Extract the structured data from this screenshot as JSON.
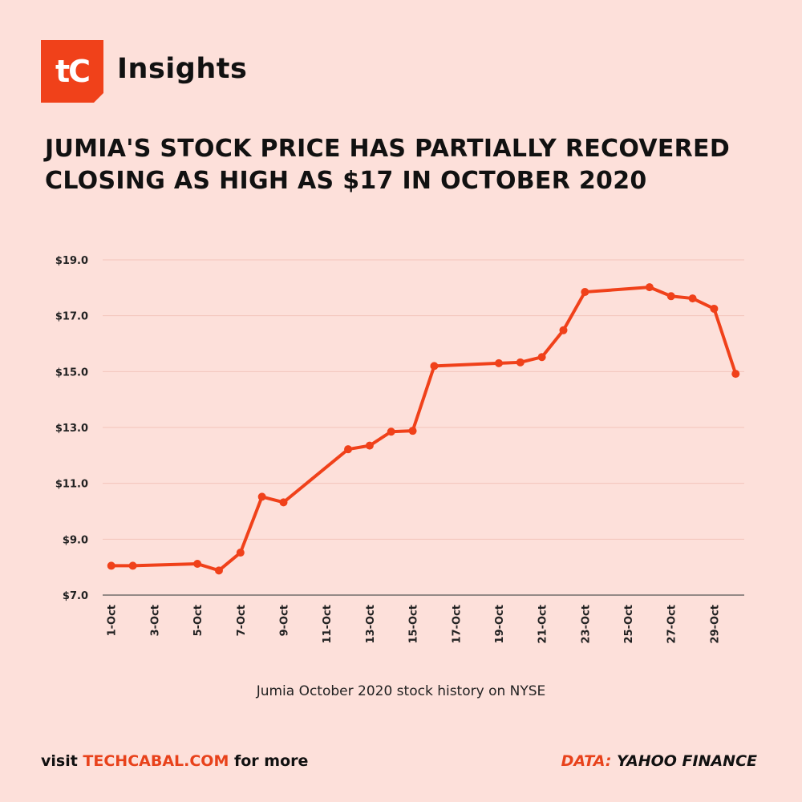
{
  "brand": {
    "logo_text": "tC",
    "name": "Insights",
    "accent_color": "#e8421b"
  },
  "title_lines": [
    "JUMIA'S STOCK PRICE HAS PARTIALLY RECOVERED",
    "CLOSING AS HIGH AS $17 IN OCTOBER 2020"
  ],
  "chart_data": {
    "type": "line",
    "title": "",
    "xlabel": "",
    "ylabel": "",
    "xlim": [
      1,
      30
    ],
    "ylim": [
      7.0,
      19.0
    ],
    "y_ticks": [
      7.0,
      9.0,
      11.0,
      13.0,
      15.0,
      17.0,
      19.0
    ],
    "y_tick_labels": [
      "$7.0",
      "$9.0",
      "$11.0",
      "$13.0",
      "$15.0",
      "$17.0",
      "$19.0"
    ],
    "x_ticks": [
      1,
      3,
      5,
      7,
      9,
      11,
      13,
      15,
      17,
      19,
      21,
      23,
      25,
      27,
      29
    ],
    "x_tick_labels": [
      "1-Oct",
      "3-Oct",
      "5-Oct",
      "7-Oct",
      "9-Oct",
      "11-Oct",
      "13-Oct",
      "15-Oct",
      "17-Oct",
      "19-Oct",
      "21-Oct",
      "23-Oct",
      "25-Oct",
      "27-Oct",
      "29-Oct"
    ],
    "grid": true,
    "line_color": "#f0411a",
    "series": [
      {
        "x": [
          1,
          2,
          5,
          6,
          7,
          8,
          9,
          12,
          13,
          14,
          15,
          16,
          19,
          20,
          21,
          22,
          23,
          26,
          27,
          28,
          29,
          30
        ],
        "values": [
          8.05,
          8.05,
          8.12,
          7.88,
          8.52,
          10.52,
          10.32,
          12.22,
          12.35,
          12.85,
          12.88,
          15.2,
          15.3,
          15.33,
          15.52,
          16.48,
          17.85,
          18.02,
          17.7,
          17.62,
          17.25,
          14.92
        ]
      }
    ]
  },
  "caption": "Jumia October 2020 stock history on NYSE",
  "footer": {
    "prefix": "visit ",
    "site": "TECHCABAL.COM",
    "suffix": " for more",
    "source_label": "DATA:",
    "source_name": " YAHOO FINANCE"
  }
}
